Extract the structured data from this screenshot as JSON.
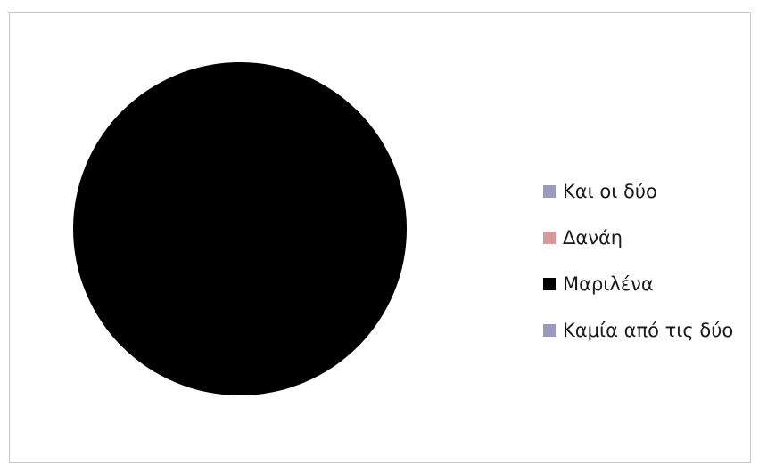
{
  "chart_data": {
    "type": "pie",
    "title": "",
    "legend_position": "right",
    "series": [
      {
        "categories": [
          "Και οι δύο",
          "Δανάη",
          "Μαριλένα",
          "Καμία από τις δύο"
        ],
        "values": [
          0,
          0,
          100,
          0
        ],
        "colors": [
          "#9b9bbf",
          "#d7999b",
          "#000000",
          "#9b9bbf"
        ]
      }
    ]
  }
}
